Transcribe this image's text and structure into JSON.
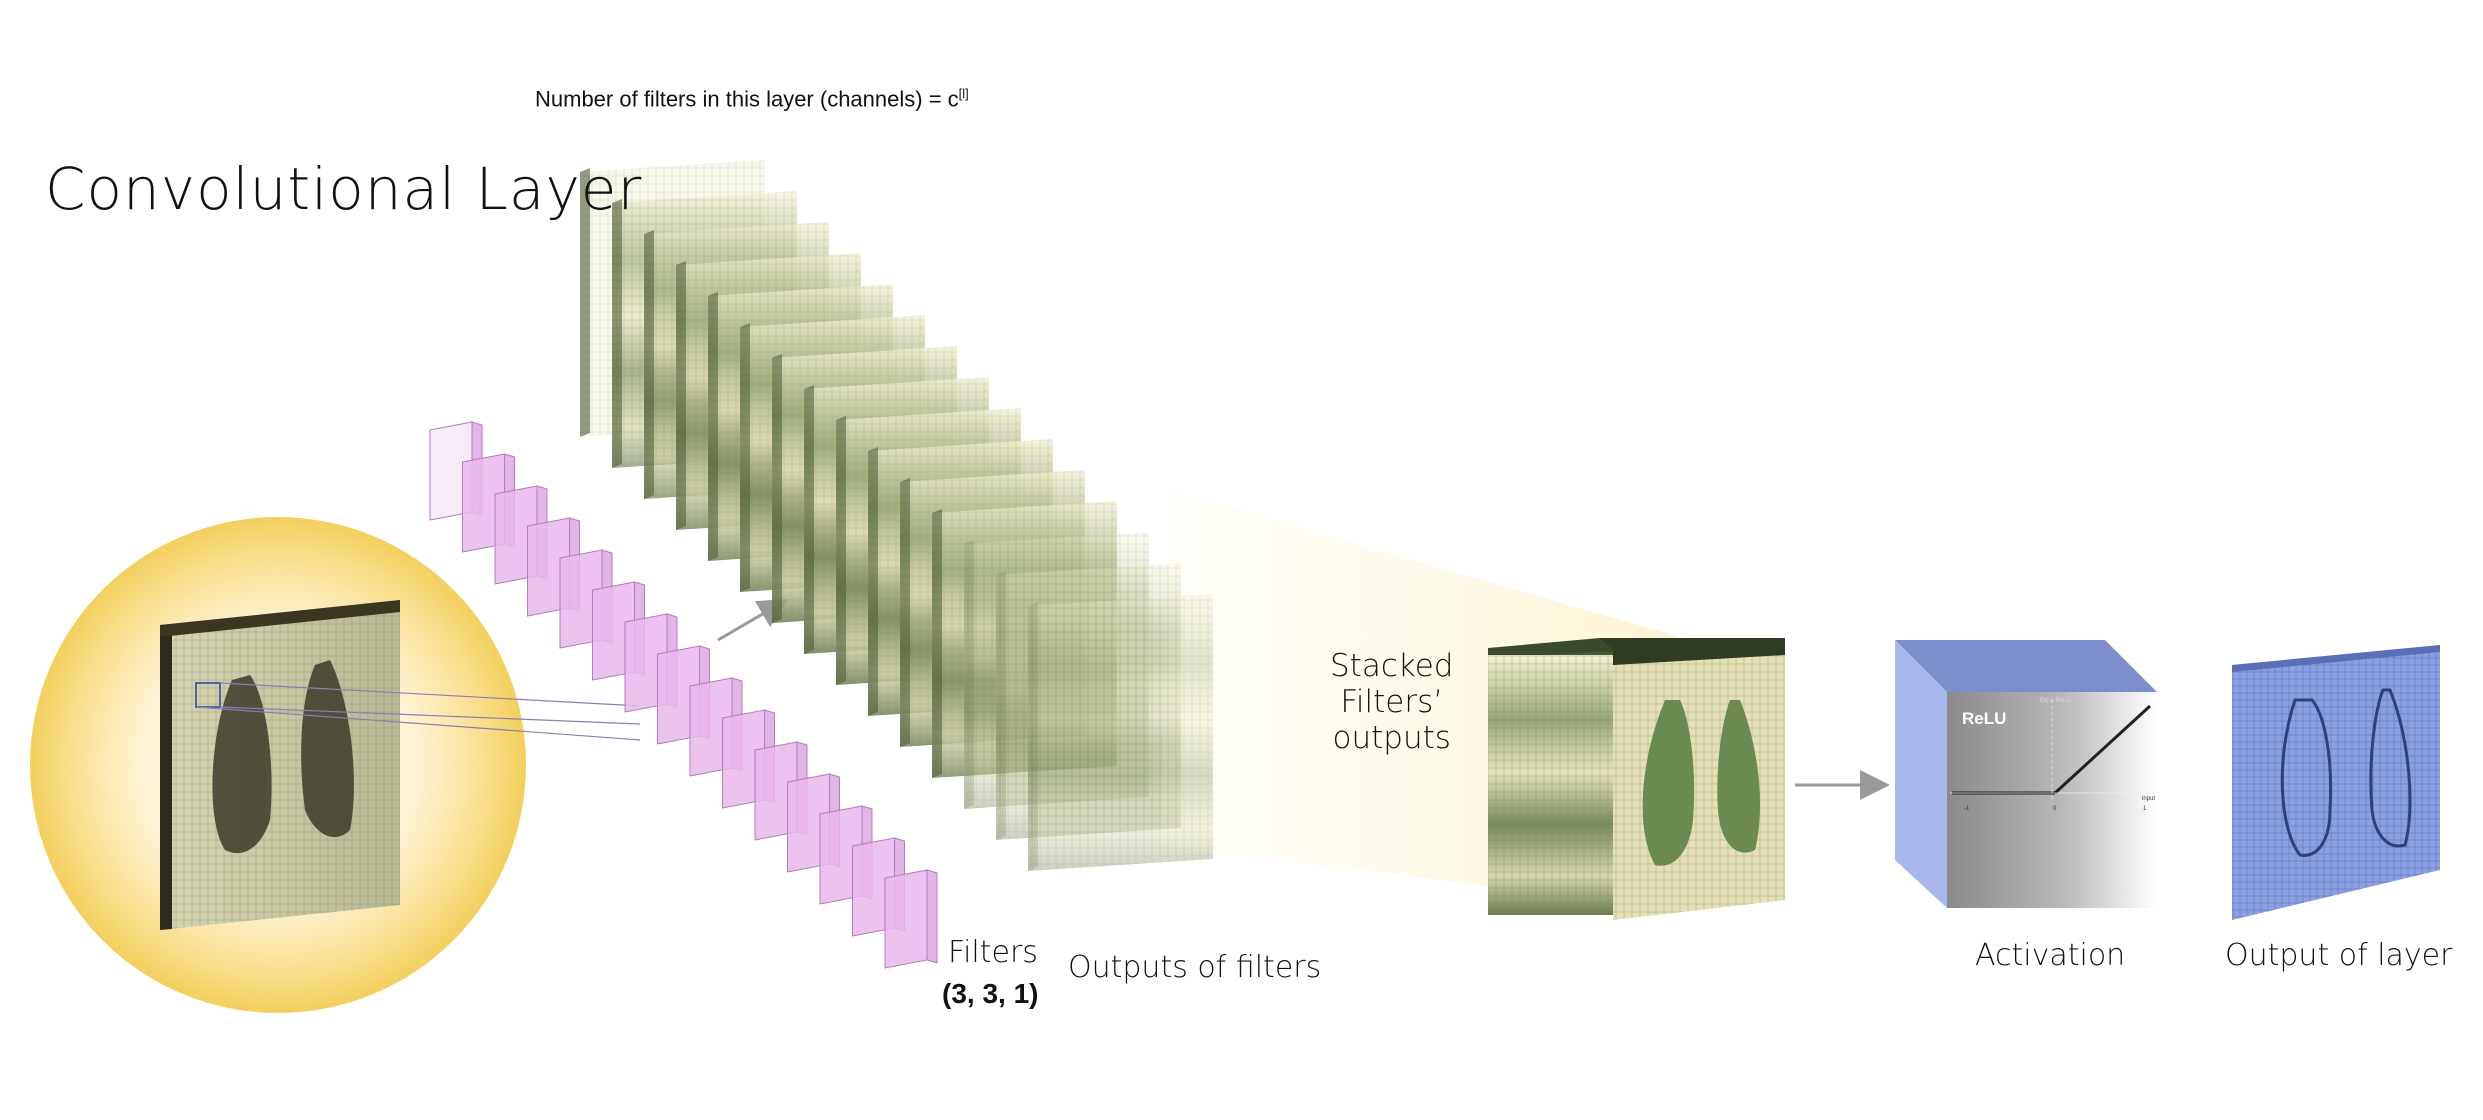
{
  "title": "Convolutional Layer",
  "filters_count": {
    "text": "Number of filters in this layer (channels) = c",
    "superscript": "[l]"
  },
  "labels": {
    "filters": "Filters",
    "filter_shape": "(3, 3, 1)",
    "outputs_of_filters": "Outputs of filters",
    "stacked": [
      "Stacked",
      "Filters’",
      "outputs"
    ],
    "activation": "Activation",
    "output_of_layer": "Output of layer"
  },
  "relu_plot": {
    "name": "ReLU",
    "ylabel": "f(x) = ReLU",
    "xlabel": "input",
    "x_ticks": [
      "-1",
      "0",
      "1"
    ]
  },
  "colors": {
    "glow": "#f6d56a",
    "filter": "#e9b8ec",
    "map_light": "#f3eed0",
    "map_dark": "#5e7248",
    "activation_blue": "#9fb0e6",
    "output_blue": "#7d95db"
  },
  "counts": {
    "filters": 15,
    "feature_maps": 15
  }
}
